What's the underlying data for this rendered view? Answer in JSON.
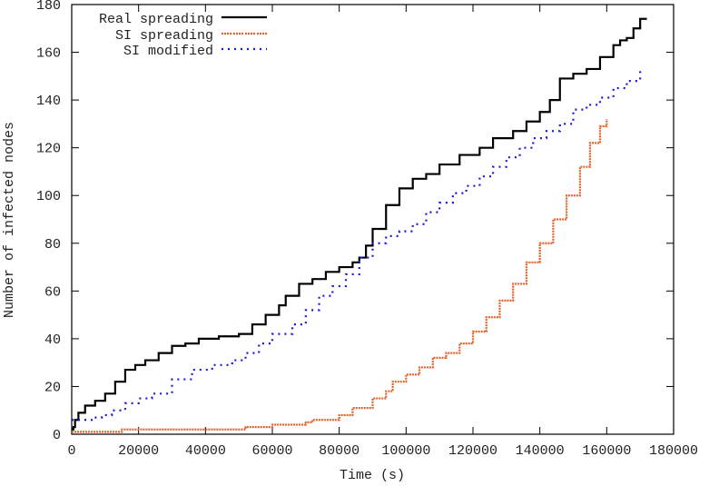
{
  "chart_data": {
    "type": "line",
    "title": "",
    "xlabel": "Time (s)",
    "ylabel": "Number of infected nodes",
    "xlim": [
      0,
      180000
    ],
    "ylim": [
      0,
      180
    ],
    "xticks": [
      0,
      20000,
      40000,
      60000,
      80000,
      100000,
      120000,
      140000,
      160000,
      180000
    ],
    "yticks": [
      0,
      20,
      40,
      60,
      80,
      100,
      120,
      140,
      160,
      180
    ],
    "grid": false,
    "legend_position": "top-left",
    "series": [
      {
        "name": "Real spreading",
        "color": "#000000",
        "style": "solid",
        "x": [
          0,
          500,
          1000,
          2000,
          4000,
          7000,
          10000,
          13000,
          16000,
          19000,
          22000,
          26000,
          30000,
          34000,
          38000,
          44000,
          50000,
          54000,
          58000,
          62000,
          64000,
          68000,
          72000,
          76000,
          80000,
          84000,
          86000,
          88000,
          90000,
          94000,
          98000,
          102000,
          106000,
          110000,
          116000,
          122000,
          126000,
          132000,
          136000,
          140000,
          143000,
          146000,
          150000,
          154000,
          158000,
          162000,
          164000,
          166000,
          168000,
          170000,
          172000
        ],
        "values": [
          2,
          3,
          6,
          9,
          12,
          14,
          17,
          22,
          27,
          29,
          31,
          34,
          37,
          38,
          40,
          41,
          42,
          46,
          50,
          54,
          58,
          63,
          65,
          68,
          70,
          72,
          74,
          79,
          86,
          96,
          103,
          107,
          109,
          113,
          117,
          120,
          124,
          127,
          131,
          135,
          140,
          149,
          151,
          153,
          158,
          163,
          165,
          166,
          170,
          174,
          174
        ]
      },
      {
        "name": "SI spreading",
        "color": "#e5622a",
        "style": "dotted",
        "x": [
          0,
          10000,
          15000,
          20000,
          40000,
          50000,
          52000,
          60000,
          70000,
          72000,
          80000,
          84000,
          90000,
          94000,
          96000,
          100000,
          104000,
          108000,
          112000,
          116000,
          120000,
          124000,
          128000,
          132000,
          136000,
          140000,
          144000,
          148000,
          152000,
          155000,
          158000,
          160000
        ],
        "values": [
          1,
          1,
          2,
          2,
          2,
          2,
          3,
          4,
          5,
          6,
          8,
          11,
          15,
          18,
          22,
          25,
          28,
          32,
          34,
          38,
          43,
          49,
          56,
          63,
          72,
          80,
          90,
          100,
          112,
          122,
          129,
          132
        ]
      },
      {
        "name": "SI modified",
        "color": "#1a1ad6",
        "style": "dotted",
        "x": [
          0,
          3000,
          6000,
          9000,
          12000,
          16000,
          20000,
          24000,
          30000,
          36000,
          42000,
          48000,
          52000,
          56000,
          60000,
          66000,
          70000,
          74000,
          78000,
          82000,
          86000,
          90000,
          94000,
          98000,
          102000,
          106000,
          110000,
          114000,
          118000,
          122000,
          126000,
          130000,
          134000,
          138000,
          142000,
          146000,
          150000,
          154000,
          158000,
          162000,
          166000,
          170000
        ],
        "values": [
          6,
          6,
          7,
          8,
          10,
          13,
          15,
          17,
          23,
          27,
          29,
          31,
          34,
          38,
          42,
          46,
          52,
          58,
          62,
          67,
          74,
          80,
          83,
          85,
          88,
          93,
          97,
          101,
          104,
          108,
          112,
          116,
          120,
          124,
          127,
          130,
          136,
          138,
          141,
          145,
          148,
          154
        ]
      }
    ]
  },
  "legend": {
    "items": [
      {
        "label": "Real spreading"
      },
      {
        "label": "SI spreading"
      },
      {
        "label": "SI modified"
      }
    ]
  }
}
